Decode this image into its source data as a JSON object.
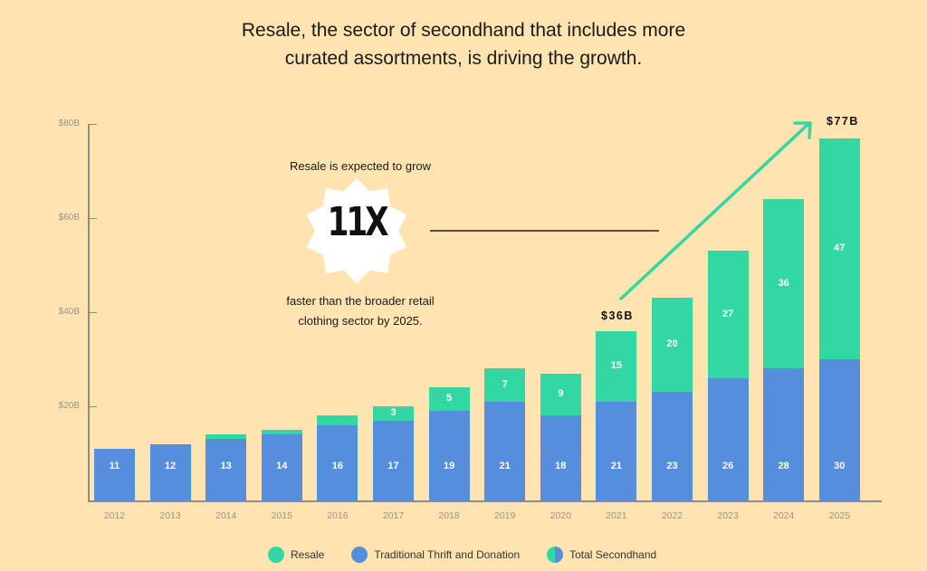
{
  "header": {
    "title_line1": "Resale, the sector of secondhand that includes more",
    "title_line2": "curated assortments, is driving the growth."
  },
  "colors": {
    "background": "#ffe4b1",
    "resale": "#33d7a4",
    "traditional": "#568ede",
    "axis": "#8c8c8c",
    "tick_text": "#9a9388"
  },
  "callout": {
    "top_text": "Resale is expected to grow",
    "badge_value": "11X",
    "bottom_line1": "faster than the broader retail",
    "bottom_line2": "clothing sector by 2025."
  },
  "annotations": {
    "start_total": "$36B",
    "end_total": "$77B"
  },
  "y_axis": {
    "ticks": [
      "$20B",
      "$40B",
      "$60B",
      "$80B"
    ]
  },
  "x_axis": {
    "years": [
      "2012",
      "2013",
      "2014",
      "2015",
      "2016",
      "2017",
      "2018",
      "2019",
      "2020",
      "2021",
      "2022",
      "2023",
      "2024",
      "2025"
    ]
  },
  "bars": [
    {
      "year": "2012",
      "traditional": 11,
      "resale": 0,
      "trad_label": "11",
      "resale_label": ""
    },
    {
      "year": "2013",
      "traditional": 12,
      "resale": 0,
      "trad_label": "12",
      "resale_label": ""
    },
    {
      "year": "2014",
      "traditional": 13,
      "resale": 1,
      "trad_label": "13",
      "resale_label": ""
    },
    {
      "year": "2015",
      "traditional": 14,
      "resale": 1,
      "trad_label": "14",
      "resale_label": ""
    },
    {
      "year": "2016",
      "traditional": 16,
      "resale": 2,
      "trad_label": "16",
      "resale_label": ""
    },
    {
      "year": "2017",
      "traditional": 17,
      "resale": 3,
      "trad_label": "17",
      "resale_label": "3"
    },
    {
      "year": "2018",
      "traditional": 19,
      "resale": 5,
      "trad_label": "19",
      "resale_label": "5"
    },
    {
      "year": "2019",
      "traditional": 21,
      "resale": 7,
      "trad_label": "21",
      "resale_label": "7"
    },
    {
      "year": "2020",
      "traditional": 18,
      "resale": 9,
      "trad_label": "18",
      "resale_label": "9"
    },
    {
      "year": "2021",
      "traditional": 21,
      "resale": 15,
      "trad_label": "21",
      "resale_label": "15"
    },
    {
      "year": "2022",
      "traditional": 23,
      "resale": 20,
      "trad_label": "23",
      "resale_label": "20"
    },
    {
      "year": "2023",
      "traditional": 26,
      "resale": 27,
      "trad_label": "26",
      "resale_label": "27"
    },
    {
      "year": "2024",
      "traditional": 28,
      "resale": 36,
      "trad_label": "28",
      "resale_label": "36"
    },
    {
      "year": "2025",
      "traditional": 30,
      "resale": 47,
      "trad_label": "30",
      "resale_label": "47"
    }
  ],
  "legend": {
    "items": [
      {
        "label": "Resale",
        "icon": "green-dot"
      },
      {
        "label": "Traditional Thrift and Donation",
        "icon": "blue-dot"
      },
      {
        "label": "Total Secondhand",
        "icon": "half-green-half-blue-dot"
      }
    ]
  },
  "chart_data": {
    "type": "bar",
    "stacked": true,
    "title": "Resale, the sector of secondhand that includes more curated assortments, is driving the growth.",
    "xlabel": "",
    "ylabel": "",
    "ylim": [
      0,
      80
    ],
    "y_ticks": [
      "$20B",
      "$40B",
      "$60B",
      "$80B"
    ],
    "categories": [
      "2012",
      "2013",
      "2014",
      "2015",
      "2016",
      "2017",
      "2018",
      "2019",
      "2020",
      "2021",
      "2022",
      "2023",
      "2024",
      "2025"
    ],
    "series": [
      {
        "name": "Traditional Thrift and Donation",
        "color": "#568ede",
        "values": [
          11,
          12,
          13,
          14,
          16,
          17,
          19,
          21,
          18,
          21,
          23,
          26,
          28,
          30
        ]
      },
      {
        "name": "Resale",
        "color": "#33d7a4",
        "values": [
          0,
          0,
          1,
          1,
          2,
          3,
          5,
          7,
          9,
          15,
          20,
          27,
          36,
          47
        ]
      }
    ],
    "totals": [
      11,
      12,
      14,
      15,
      18,
      20,
      24,
      28,
      27,
      36,
      43,
      53,
      64,
      77
    ],
    "legend": [
      "Resale",
      "Traditional Thrift and Donation",
      "Total Secondhand"
    ],
    "legend_position": "bottom",
    "grid": false,
    "annotations": [
      {
        "text": "$36B",
        "at": "2021"
      },
      {
        "text": "$77B",
        "at": "2025"
      },
      {
        "text": "Resale is expected to grow 11X faster than the broader retail clothing sector by 2025."
      }
    ]
  }
}
